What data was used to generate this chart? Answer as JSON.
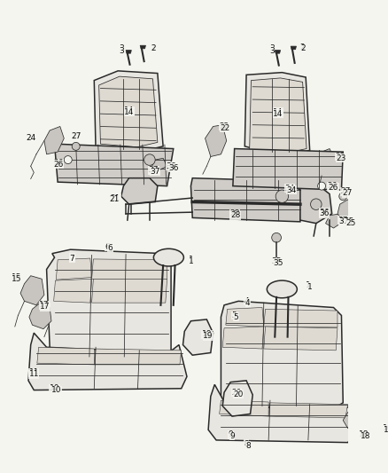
{
  "bg_color": "#f5f5f0",
  "line_color": "#2a2a2a",
  "fig_width": 4.38,
  "fig_height": 5.33,
  "dpi": 100,
  "label_fontsize": 6.5,
  "lw_main": 1.1,
  "lw_thin": 0.55
}
